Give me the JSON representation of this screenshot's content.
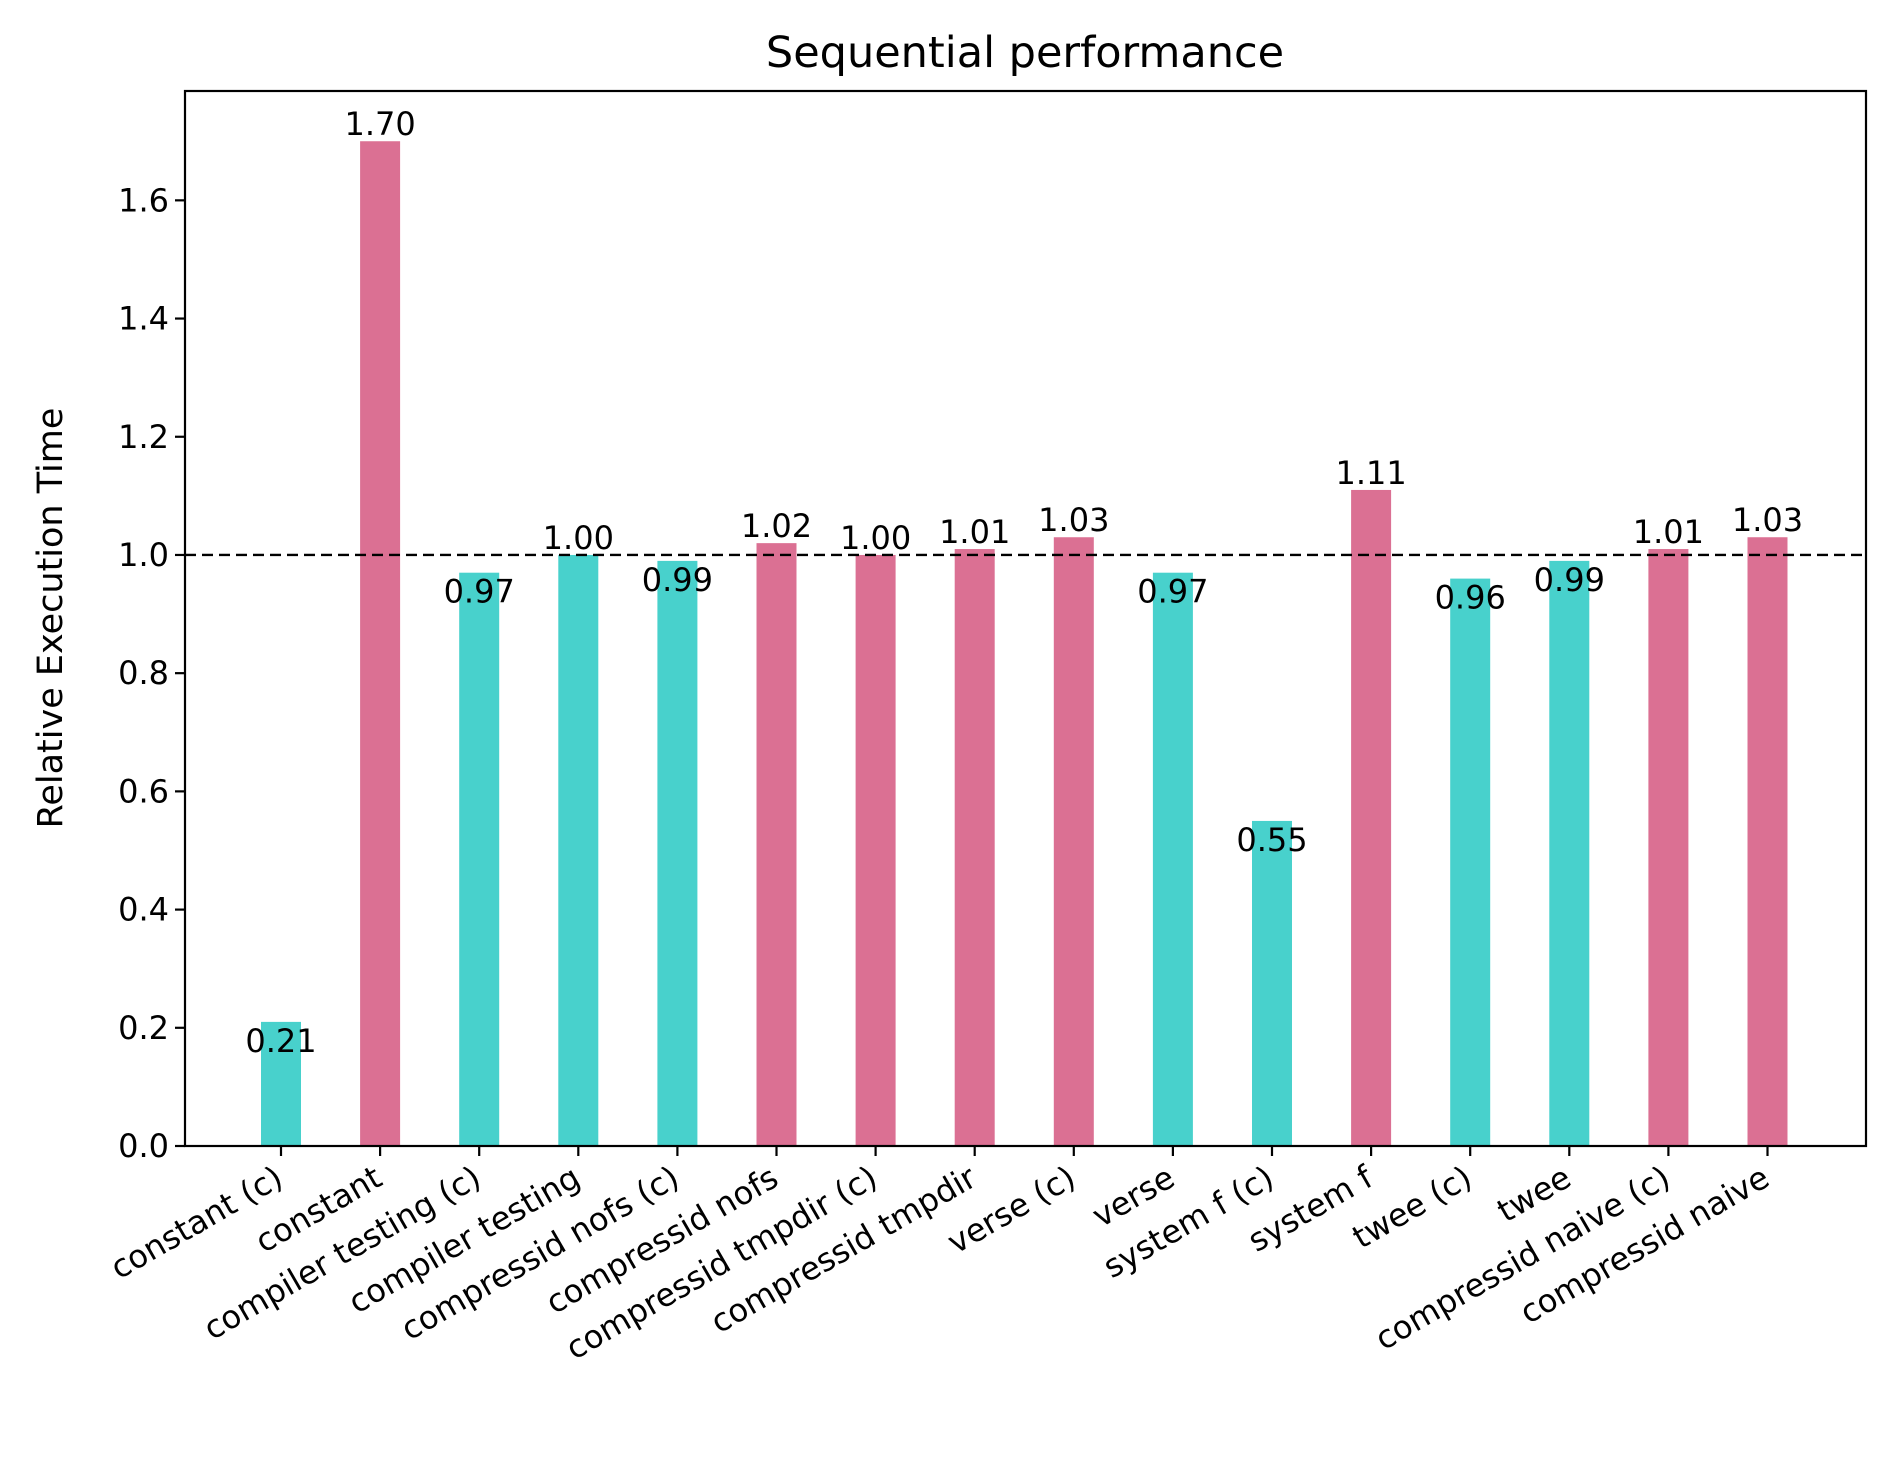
{
  "chart_data": {
    "type": "bar",
    "title": "Sequential performance",
    "xlabel": "",
    "ylabel": "Relative Execution Time",
    "ylim": [
      0,
      1.785
    ],
    "yticks": [
      0.0,
      0.2,
      0.4,
      0.6,
      0.8,
      1.0,
      1.2,
      1.4,
      1.6
    ],
    "yticks_text": [
      "0.0",
      "0.2",
      "0.4",
      "0.6",
      "0.8",
      "1.0",
      "1.2",
      "1.4",
      "1.6"
    ],
    "reference_line": {
      "y": 1.0,
      "style": "dashed",
      "color": "#000000"
    },
    "grid": false,
    "legend": "none",
    "colors": {
      "faster": "#48D1CC",
      "slower": "#DB7093"
    },
    "categories": [
      "constant (c)",
      "constant",
      "compiler testing (c)",
      "compiler testing",
      "compressid nofs (c)",
      "compressid nofs",
      "compressid tmpdir (c)",
      "compressid tmpdir",
      "verse (c)",
      "verse",
      "system f (c)",
      "system f",
      "twee (c)",
      "twee",
      "compressid naive (c)",
      "compressid naive"
    ],
    "values": [
      0.21,
      1.7,
      0.97,
      1.0,
      0.99,
      1.02,
      1.0,
      1.01,
      1.03,
      0.97,
      0.55,
      1.11,
      0.96,
      0.99,
      1.01,
      1.03
    ],
    "labels": [
      "0.21",
      "1.70",
      "0.97",
      "1.00",
      "0.99",
      "1.02",
      "1.00",
      "1.01",
      "1.03",
      "0.97",
      "0.55",
      "1.11",
      "0.96",
      "0.99",
      "1.01",
      "1.03"
    ],
    "bar_colors": [
      "faster",
      "slower",
      "faster",
      "faster",
      "faster",
      "slower",
      "slower",
      "slower",
      "slower",
      "faster",
      "faster",
      "slower",
      "faster",
      "faster",
      "slower",
      "slower"
    ]
  }
}
